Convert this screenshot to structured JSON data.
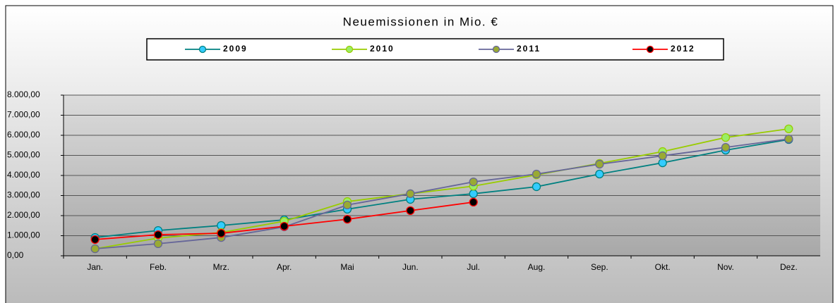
{
  "chart_data": {
    "type": "line",
    "title": "Neuemissionen in Mio. €",
    "categories": [
      "Jan.",
      "Feb.",
      "Mrz.",
      "Apr.",
      "Mai",
      "Jun.",
      "Jul.",
      "Aug.",
      "Sep.",
      "Okt.",
      "Nov.",
      "Dez."
    ],
    "series": [
      {
        "name": "2009",
        "color": "#008080",
        "marker_color": "#33ccff",
        "values": [
          912,
          1260,
          1510,
          1790,
          2320,
          2810,
          3090,
          3440,
          4070,
          4630,
          5260,
          5790
        ]
      },
      {
        "name": "2010",
        "color": "#99cc00",
        "marker_color": "#99ee66",
        "values": [
          350,
          880,
          1160,
          1720,
          2700,
          3090,
          3470,
          4030,
          4600,
          5190,
          5890,
          6320
        ]
      },
      {
        "name": "2011",
        "color": "#666699",
        "marker_color": "#99aa33",
        "values": [
          350,
          600,
          910,
          1440,
          2530,
          3090,
          3680,
          4070,
          4560,
          4980,
          5400,
          5820
        ]
      },
      {
        "name": "2012",
        "color": "#ff0000",
        "marker_color": "#000000",
        "values": [
          810,
          1050,
          1120,
          1470,
          1820,
          2250,
          2670,
          null,
          null,
          null,
          null,
          null
        ]
      }
    ],
    "ylim": [
      0,
      8000
    ],
    "yticks": [
      {
        "value": 0,
        "label": "0,00"
      },
      {
        "value": 1000,
        "label": "1.000,00"
      },
      {
        "value": 2000,
        "label": "2.000,00"
      },
      {
        "value": 3000,
        "label": "3.000,00"
      },
      {
        "value": 4000,
        "label": "4.000,00"
      },
      {
        "value": 5000,
        "label": "5.000,00"
      },
      {
        "value": 6000,
        "label": "6.000,00"
      },
      {
        "value": 7000,
        "label": "7.000,00"
      },
      {
        "value": 8000,
        "label": "8.000,00"
      }
    ],
    "grid": true,
    "legend": "top"
  }
}
